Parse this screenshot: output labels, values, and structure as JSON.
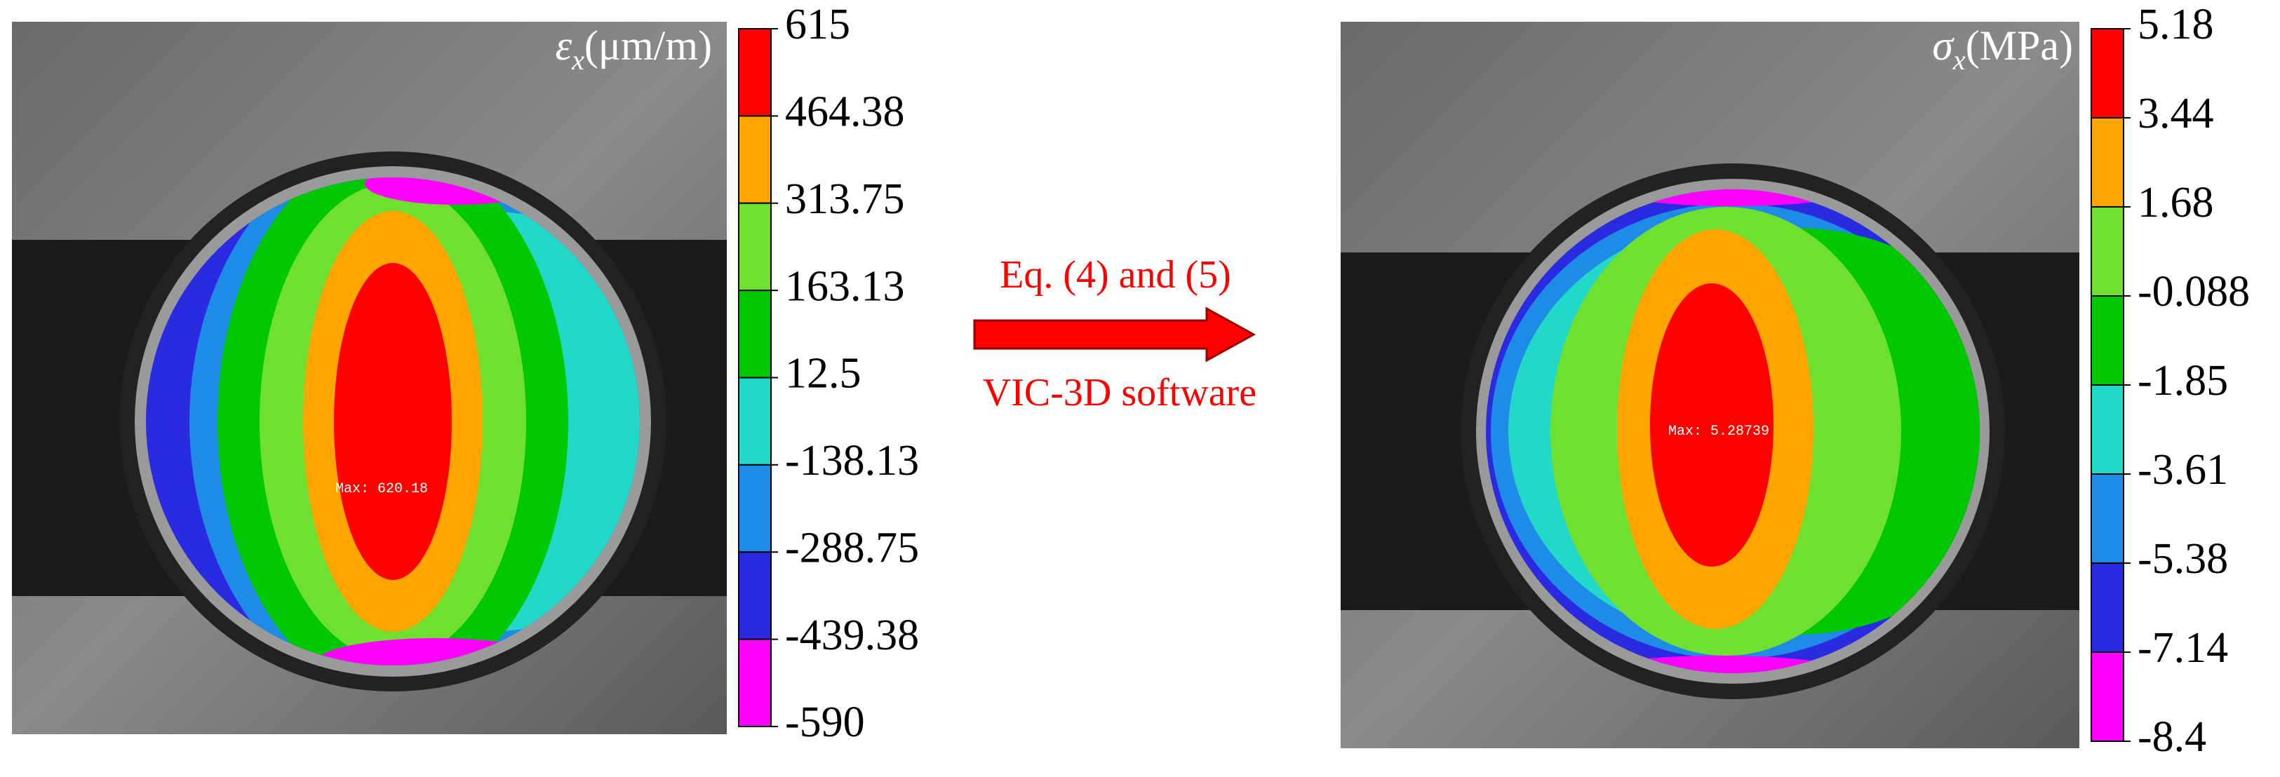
{
  "left_panel": {
    "symbol": "ε",
    "subscript": "x",
    "unit": "(μm/m)",
    "max_label": "Max: 620.18",
    "colorbar_ticks": [
      "615",
      "464.38",
      "313.75",
      "163.13",
      "12.5",
      "-138.13",
      "-288.75",
      "-439.38",
      "-590"
    ]
  },
  "middle": {
    "top_text": "Eq. (4) and (5)",
    "bottom_text": "VIC-3D software"
  },
  "right_panel": {
    "symbol": "σ",
    "subscript": "x",
    "unit": "(MPa)",
    "max_label": "Max: 5.28739",
    "colorbar_ticks": [
      "5.18",
      "3.44",
      "1.68",
      "-0.088",
      "-1.85",
      "-3.61",
      "-5.38",
      "-7.14",
      "-8.4"
    ]
  }
}
